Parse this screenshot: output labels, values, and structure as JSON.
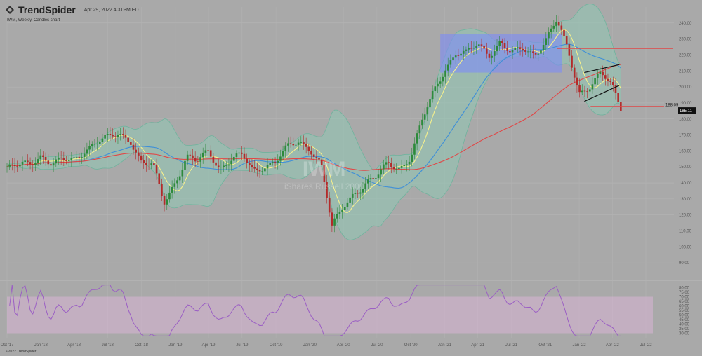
{
  "header": {
    "brand": "TrendSpider",
    "timestamp": "Apr 29, 2022 4:31PM EDT",
    "subtitle": "IWM, Weekly, Candles chart",
    "copyright": "©2022 TrendSpider"
  },
  "watermark": {
    "ticker": "IWM",
    "name": "iShares Russell 2000"
  },
  "colors": {
    "background": "#a9a9a9",
    "bollinger_fill": "#8fc9b4",
    "bollinger_line": "#6fb39d",
    "sma_fast": "#f6f08c",
    "sma_mid": "#3f8fd8",
    "sma_slow": "#e04848",
    "rsi_line": "#9b5fc4",
    "rsi_band": "#e3b6dd",
    "rect_fill": "#7d8cf8",
    "candle_up": "#2d8a3b",
    "candle_down": "#b32a2a"
  },
  "chart_data": {
    "type": "candlestick",
    "symbol": "IWM",
    "interval": "Weekly",
    "price_axis": {
      "range": [
        80,
        250
      ],
      "ticks": [
        "90.00",
        "100.00",
        "110.00",
        "120.00",
        "130.00",
        "140.00",
        "150.00",
        "160.00",
        "170.00",
        "180.00",
        "190.00",
        "200.00",
        "210.00",
        "220.00",
        "230.00",
        "240.00"
      ]
    },
    "time_axis": {
      "range": [
        "2017-10-01",
        "2022-07-20"
      ],
      "ticks": [
        {
          "label": "Oct '17",
          "date": "2017-10-01"
        },
        {
          "label": "Jan '18",
          "date": "2018-01-01"
        },
        {
          "label": "Apr '18",
          "date": "2018-04-01"
        },
        {
          "label": "Jul '18",
          "date": "2018-07-01"
        },
        {
          "label": "Oct '18",
          "date": "2018-10-01"
        },
        {
          "label": "Jan '19",
          "date": "2019-01-01"
        },
        {
          "label": "Apr '19",
          "date": "2019-04-01"
        },
        {
          "label": "Jul '19",
          "date": "2019-07-01"
        },
        {
          "label": "Oct '19",
          "date": "2019-10-01"
        },
        {
          "label": "Jan '20",
          "date": "2020-01-01"
        },
        {
          "label": "Apr '20",
          "date": "2020-04-01"
        },
        {
          "label": "Jul '20",
          "date": "2020-07-01"
        },
        {
          "label": "Oct '20",
          "date": "2020-10-01"
        },
        {
          "label": "Jan '21",
          "date": "2021-01-01"
        },
        {
          "label": "Apr '21",
          "date": "2021-04-01"
        },
        {
          "label": "Jul '21",
          "date": "2021-07-01"
        },
        {
          "label": "Oct '21",
          "date": "2021-10-01"
        },
        {
          "label": "Jan '22",
          "date": "2022-01-01"
        },
        {
          "label": "Apr '22",
          "date": "2022-04-01"
        },
        {
          "label": "Jul '22",
          "date": "2022-07-01"
        }
      ]
    },
    "close_series": [
      [
        "2017-10-01",
        148
      ],
      [
        "2017-11-01",
        150
      ],
      [
        "2017-12-01",
        153
      ],
      [
        "2018-01-01",
        158
      ],
      [
        "2018-02-01",
        151
      ],
      [
        "2018-03-01",
        153
      ],
      [
        "2018-04-01",
        155
      ],
      [
        "2018-05-01",
        162
      ],
      [
        "2018-06-01",
        165
      ],
      [
        "2018-07-01",
        167
      ],
      [
        "2018-08-01",
        171
      ],
      [
        "2018-09-01",
        168
      ],
      [
        "2018-10-01",
        152
      ],
      [
        "2018-11-01",
        150
      ],
      [
        "2018-12-01",
        128
      ],
      [
        "2019-01-01",
        142
      ],
      [
        "2019-02-01",
        156
      ],
      [
        "2019-03-01",
        152
      ],
      [
        "2019-04-01",
        160
      ],
      [
        "2019-05-01",
        150
      ],
      [
        "2019-06-01",
        155
      ],
      [
        "2019-07-01",
        156
      ],
      [
        "2019-08-01",
        147
      ],
      [
        "2019-09-01",
        152
      ],
      [
        "2019-10-01",
        154
      ],
      [
        "2019-11-01",
        161
      ],
      [
        "2019-12-01",
        165
      ],
      [
        "2020-01-01",
        163
      ],
      [
        "2020-02-01",
        152
      ],
      [
        "2020-03-01",
        111
      ],
      [
        "2020-04-01",
        125
      ],
      [
        "2020-05-01",
        135
      ],
      [
        "2020-06-01",
        140
      ],
      [
        "2020-07-01",
        143
      ],
      [
        "2020-08-01",
        152
      ],
      [
        "2020-09-01",
        150
      ],
      [
        "2020-10-01",
        157
      ],
      [
        "2020-11-01",
        178
      ],
      [
        "2020-12-01",
        196
      ],
      [
        "2021-01-01",
        212
      ],
      [
        "2021-02-01",
        222
      ],
      [
        "2021-03-01",
        220
      ],
      [
        "2021-04-01",
        226
      ],
      [
        "2021-05-01",
        221
      ],
      [
        "2021-06-01",
        229
      ],
      [
        "2021-07-01",
        220
      ],
      [
        "2021-08-01",
        223
      ],
      [
        "2021-09-01",
        221
      ],
      [
        "2021-10-01",
        230
      ],
      [
        "2021-11-01",
        241
      ],
      [
        "2021-12-01",
        222
      ],
      [
        "2022-01-01",
        197
      ],
      [
        "2022-02-01",
        202
      ],
      [
        "2022-03-01",
        208
      ],
      [
        "2022-04-01",
        199
      ],
      [
        "2022-04-29",
        185.11
      ]
    ],
    "price_labels": {
      "last": "185.11",
      "reference": "188.09"
    },
    "overlays": [
      "Bollinger Bands",
      "SMA (yellow)",
      "SMA (blue)",
      "SMA (red)"
    ],
    "annotations": [
      {
        "type": "rectangle",
        "from": "2020-12-20",
        "to": "2021-11-15",
        "price_low": 209,
        "price_high": 233
      },
      {
        "type": "horizontal_line",
        "from": "2021-11-01",
        "price": 224
      },
      {
        "type": "horizontal_line",
        "from": "2022-02-01",
        "price": 188
      },
      {
        "type": "trendline",
        "from": [
          "2022-01-15",
          209
        ],
        "to": [
          "2022-04-20",
          214
        ]
      },
      {
        "type": "trendline",
        "from": [
          "2022-01-15",
          191
        ],
        "to": [
          "2022-04-20",
          201
        ]
      }
    ],
    "rsi": {
      "axis_range": [
        25,
        85
      ],
      "ticks": [
        "30.00",
        "35.00",
        "40.00",
        "45.00",
        "50.00",
        "55.00",
        "60.00",
        "65.00",
        "70.00",
        "75.00",
        "80.00"
      ],
      "band": [
        30,
        70
      ]
    }
  }
}
